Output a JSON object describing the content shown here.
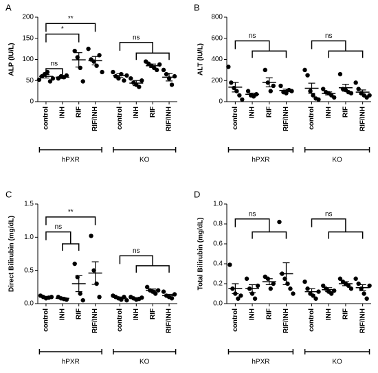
{
  "chart_data": [
    {
      "type": "dotplot",
      "panel": "A",
      "ylabel": "ALP (IU/L)",
      "color": "#000000",
      "categories": [
        "control",
        "INH",
        "RIF",
        "RIF/INH",
        "control",
        "INH",
        "RIF",
        "RIF/INH"
      ],
      "groups": [
        "hPXR",
        "KO"
      ],
      "points": [
        [
          52,
          60,
          65,
          70,
          48,
          55
        ],
        [
          55,
          60,
          58,
          62
        ],
        [
          120,
          105,
          80,
          48
        ],
        [
          125,
          100,
          95,
          85,
          110,
          70
        ],
        [
          70,
          60,
          55,
          65,
          50,
          62
        ],
        [
          55,
          45,
          40,
          35,
          50
        ],
        [
          95,
          90,
          85,
          80,
          75,
          88
        ],
        [
          75,
          65,
          55,
          40,
          60
        ]
      ],
      "means": [
        60,
        58,
        99,
        97,
        62,
        44,
        85,
        58
      ],
      "sem": [
        4,
        3,
        17,
        10,
        5,
        6,
        4,
        9
      ],
      "comparisons": [
        {
          "label": "ns",
          "from": 0,
          "to": [
            1
          ]
        },
        {
          "label": "*",
          "from": 0,
          "to": [
            2
          ]
        },
        {
          "label": "**",
          "from": 0,
          "to": [
            3
          ]
        },
        {
          "label": "ns",
          "from": 4,
          "to": [
            5,
            6,
            7
          ]
        }
      ],
      "ylim": [
        0,
        200
      ],
      "yticks": [
        0,
        50,
        100,
        150,
        200
      ]
    },
    {
      "type": "dotplot",
      "panel": "B",
      "ylabel": "ALT (IU/L)",
      "color": "#000000",
      "categories": [
        "control",
        "INH",
        "RIF",
        "RIF/INH",
        "control",
        "INH",
        "RIF",
        "RIF/INH"
      ],
      "groups": [
        "hPXR",
        "KO"
      ],
      "points": [
        [
          330,
          180,
          130,
          100,
          60,
          20
        ],
        [
          100,
          60,
          50,
          70
        ],
        [
          300,
          180,
          100,
          150
        ],
        [
          150,
          90,
          80,
          110,
          100
        ],
        [
          300,
          250,
          100,
          60,
          30,
          20
        ],
        [
          120,
          90,
          80,
          60,
          40
        ],
        [
          260,
          120,
          110,
          90,
          80
        ],
        [
          180,
          120,
          80,
          60,
          40,
          60
        ]
      ],
      "means": [
        137,
        70,
        183,
        106,
        127,
        78,
        132,
        90
      ],
      "sem": [
        45,
        11,
        43,
        12,
        48,
        14,
        33,
        21
      ],
      "comparisons": [
        {
          "label": "ns",
          "from": 0,
          "to": [
            1,
            2,
            3
          ]
        },
        {
          "label": "ns",
          "from": 4,
          "to": [
            5,
            6,
            7
          ]
        }
      ],
      "ylim": [
        0,
        800
      ],
      "yticks": [
        0,
        200,
        400,
        600,
        800
      ]
    },
    {
      "type": "dotplot",
      "panel": "C",
      "ylabel": "Direct Bilirubin (mg/dL)",
      "color": "#000000",
      "categories": [
        "control",
        "INH",
        "RIF",
        "RIF/INH",
        "control",
        "INH",
        "RIF",
        "RIF/INH"
      ],
      "groups": [
        "hPXR",
        "KO"
      ],
      "points": [
        [
          0.12,
          0.1,
          0.08,
          0.09,
          0.1
        ],
        [
          0.1,
          0.08,
          0.07,
          0.06
        ],
        [
          0.6,
          0.4,
          0.15,
          0.05
        ],
        [
          1.02,
          0.5,
          0.3,
          0.1
        ],
        [
          0.12,
          0.1,
          0.08,
          0.06,
          0.1,
          0.05
        ],
        [
          0.1,
          0.08,
          0.06,
          0.07,
          0.09
        ],
        [
          0.25,
          0.2,
          0.18,
          0.15,
          0.2
        ],
        [
          0.18,
          0.12,
          0.1,
          0.08,
          0.14
        ]
      ],
      "means": [
        0.1,
        0.08,
        0.3,
        0.46,
        0.09,
        0.08,
        0.2,
        0.12
      ],
      "sem": [
        0.01,
        0.01,
        0.12,
        0.17,
        0.01,
        0.01,
        0.02,
        0.02
      ],
      "comparisons": [
        {
          "label": "ns",
          "from": 0,
          "to": [
            1,
            2
          ]
        },
        {
          "label": "**",
          "from": 0,
          "to": [
            3
          ]
        },
        {
          "label": "ns",
          "from": 4,
          "to": [
            5,
            6,
            7
          ]
        }
      ],
      "ylim": [
        0,
        1.5
      ],
      "yticks": [
        {
          "value": 0,
          "label": "0.0"
        },
        {
          "value": 0.5,
          "label": "0.5"
        },
        {
          "value": 1,
          "label": "1.0"
        },
        {
          "value": 1.5,
          "label": "1.5"
        }
      ]
    },
    {
      "type": "dotplot",
      "panel": "D",
      "ylabel": "Total Bilirubin (mg/dL)",
      "color": "#000000",
      "categories": [
        "control",
        "INH",
        "RIF",
        "RIF/INH",
        "control",
        "INH",
        "RIF",
        "RIF/INH"
      ],
      "groups": [
        "hPXR",
        "KO"
      ],
      "points": [
        [
          0.39,
          0.15,
          0.1,
          0.05,
          0.08
        ],
        [
          0.25,
          0.15,
          0.1,
          0.05,
          0.18
        ],
        [
          0.27,
          0.25,
          0.15,
          0.2
        ],
        [
          0.82,
          0.3,
          0.25,
          0.2,
          0.15,
          0.1
        ],
        [
          0.22,
          0.15,
          0.1,
          0.08,
          0.05,
          0.12
        ],
        [
          0.18,
          0.15,
          0.12,
          0.1,
          0.13
        ],
        [
          0.25,
          0.22,
          0.2,
          0.18,
          0.15
        ],
        [
          0.25,
          0.2,
          0.15,
          0.1,
          0.05,
          0.18
        ]
      ],
      "means": [
        0.15,
        0.15,
        0.22,
        0.3,
        0.12,
        0.14,
        0.2,
        0.16
      ],
      "sem": [
        0.05,
        0.04,
        0.03,
        0.11,
        0.03,
        0.02,
        0.02,
        0.03
      ],
      "comparisons": [
        {
          "label": "ns",
          "from": 0,
          "to": [
            1,
            2,
            3
          ]
        },
        {
          "label": "ns",
          "from": 4,
          "to": [
            5,
            6,
            7
          ]
        }
      ],
      "ylim": [
        0,
        1
      ],
      "yticks": [
        {
          "value": 0,
          "label": "0.0"
        },
        {
          "value": 0.2,
          "label": "0.2"
        },
        {
          "value": 0.4,
          "label": "0.4"
        },
        {
          "value": 0.6,
          "label": "0.6"
        },
        {
          "value": 0.8,
          "label": "0.8"
        },
        {
          "value": 1,
          "label": "1.0"
        }
      ]
    }
  ]
}
